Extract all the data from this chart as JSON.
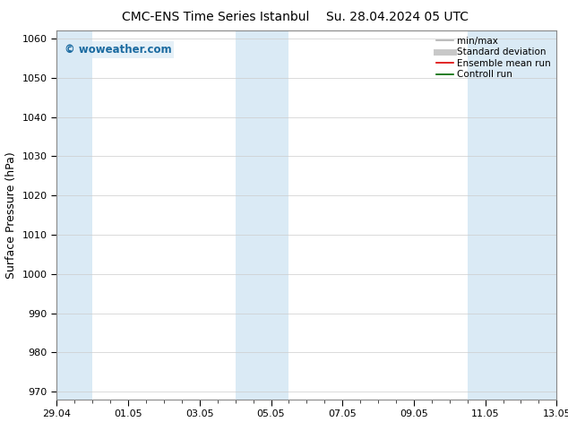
{
  "title_left": "CMC-ENS Time Series Istanbul",
  "title_right": "Su. 28.04.2024 05 UTC",
  "ylabel": "Surface Pressure (hPa)",
  "ylim": [
    968,
    1062
  ],
  "yticks": [
    970,
    980,
    990,
    1000,
    1010,
    1020,
    1030,
    1040,
    1050,
    1060
  ],
  "xlim_start": 0.0,
  "xlim_end": 14.0,
  "x_tick_labels": [
    "29.04",
    "01.05",
    "03.05",
    "05.05",
    "07.05",
    "09.05",
    "11.05",
    "13.05"
  ],
  "x_tick_positions": [
    0,
    2,
    4,
    6,
    8,
    10,
    12,
    14
  ],
  "shaded_bands": [
    {
      "x_start": -0.1,
      "x_end": 1.0,
      "color": "#daeaf5"
    },
    {
      "x_start": 5.0,
      "x_end": 6.5,
      "color": "#daeaf5"
    },
    {
      "x_start": 11.5,
      "x_end": 14.1,
      "color": "#daeaf5"
    }
  ],
  "legend_items": [
    {
      "label": "min/max",
      "color": "#b0b0b0",
      "lw": 1.2,
      "style": "solid"
    },
    {
      "label": "Standard deviation",
      "color": "#c8c8c8",
      "lw": 5,
      "style": "solid"
    },
    {
      "label": "Ensemble mean run",
      "color": "#dd0000",
      "lw": 1.2,
      "style": "solid"
    },
    {
      "label": "Controll run",
      "color": "#006600",
      "lw": 1.2,
      "style": "solid"
    }
  ],
  "watermark_text": "© woweather.com",
  "watermark_color": "#1a6aa0",
  "background_color": "#ffffff",
  "plot_bg_color": "#ffffff",
  "grid_color": "#cccccc",
  "title_fontsize": 10,
  "tick_label_fontsize": 8,
  "ylabel_fontsize": 9,
  "legend_fontsize": 7.5
}
